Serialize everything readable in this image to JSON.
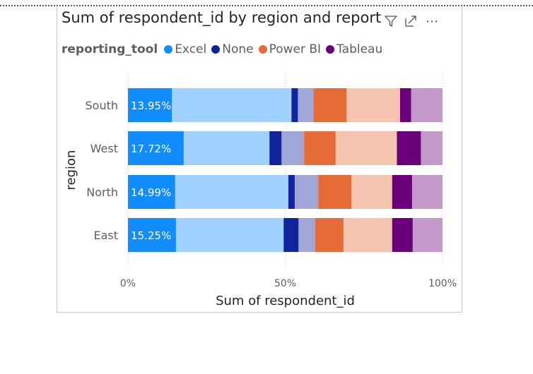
{
  "visual": {
    "title": "Sum of respondent_id by region and reporting_tool",
    "menu_glyph": "⋯"
  },
  "colors": {
    "excel": "#118dff",
    "excel_light": "#a0d1ff",
    "none": "#12239e",
    "none_light": "#a0a7d8",
    "power_bi": "#e66c37",
    "power_bi_light": "#f5c4af",
    "tableau": "#6b007b",
    "tableau_light": "#c498cb"
  },
  "chart_data": {
    "type": "bar",
    "orientation": "horizontal",
    "stacking": "100%",
    "title": "Sum of respondent_id by region and reporting_tool",
    "legend_title": "reporting_tool",
    "legend_position": "top-left",
    "xlabel": "Sum of respondent_id",
    "ylabel": "region",
    "x_ticks": [
      "0%",
      "50%",
      "100%"
    ],
    "grid": "vertical dotted",
    "categories": [
      "South",
      "West",
      "North",
      "East"
    ],
    "series": [
      {
        "name": "Excel",
        "color": "#118dff",
        "highlight_values": [
          13.95,
          17.72,
          14.99,
          15.25
        ],
        "total_values": [
          52.0,
          45.0,
          51.0,
          49.5
        ]
      },
      {
        "name": "None",
        "color": "#12239e",
        "highlight_values": [
          2.0,
          3.8,
          2.0,
          4.7
        ],
        "total_values": [
          7.0,
          11.0,
          9.5,
          10.0
        ]
      },
      {
        "name": "Power BI",
        "color": "#e66c37",
        "highlight_values": [
          10.5,
          10.0,
          10.5,
          9.0
        ],
        "total_values": [
          27.5,
          29.5,
          23.5,
          24.5
        ]
      },
      {
        "name": "Tableau",
        "color": "#6b007b",
        "highlight_values": [
          3.5,
          7.6,
          6.3,
          6.5
        ],
        "total_values": [
          13.5,
          14.5,
          16.0,
          16.0
        ]
      }
    ],
    "data_labels": [
      "13.95%",
      "17.72%",
      "14.99%",
      "15.25%"
    ]
  }
}
